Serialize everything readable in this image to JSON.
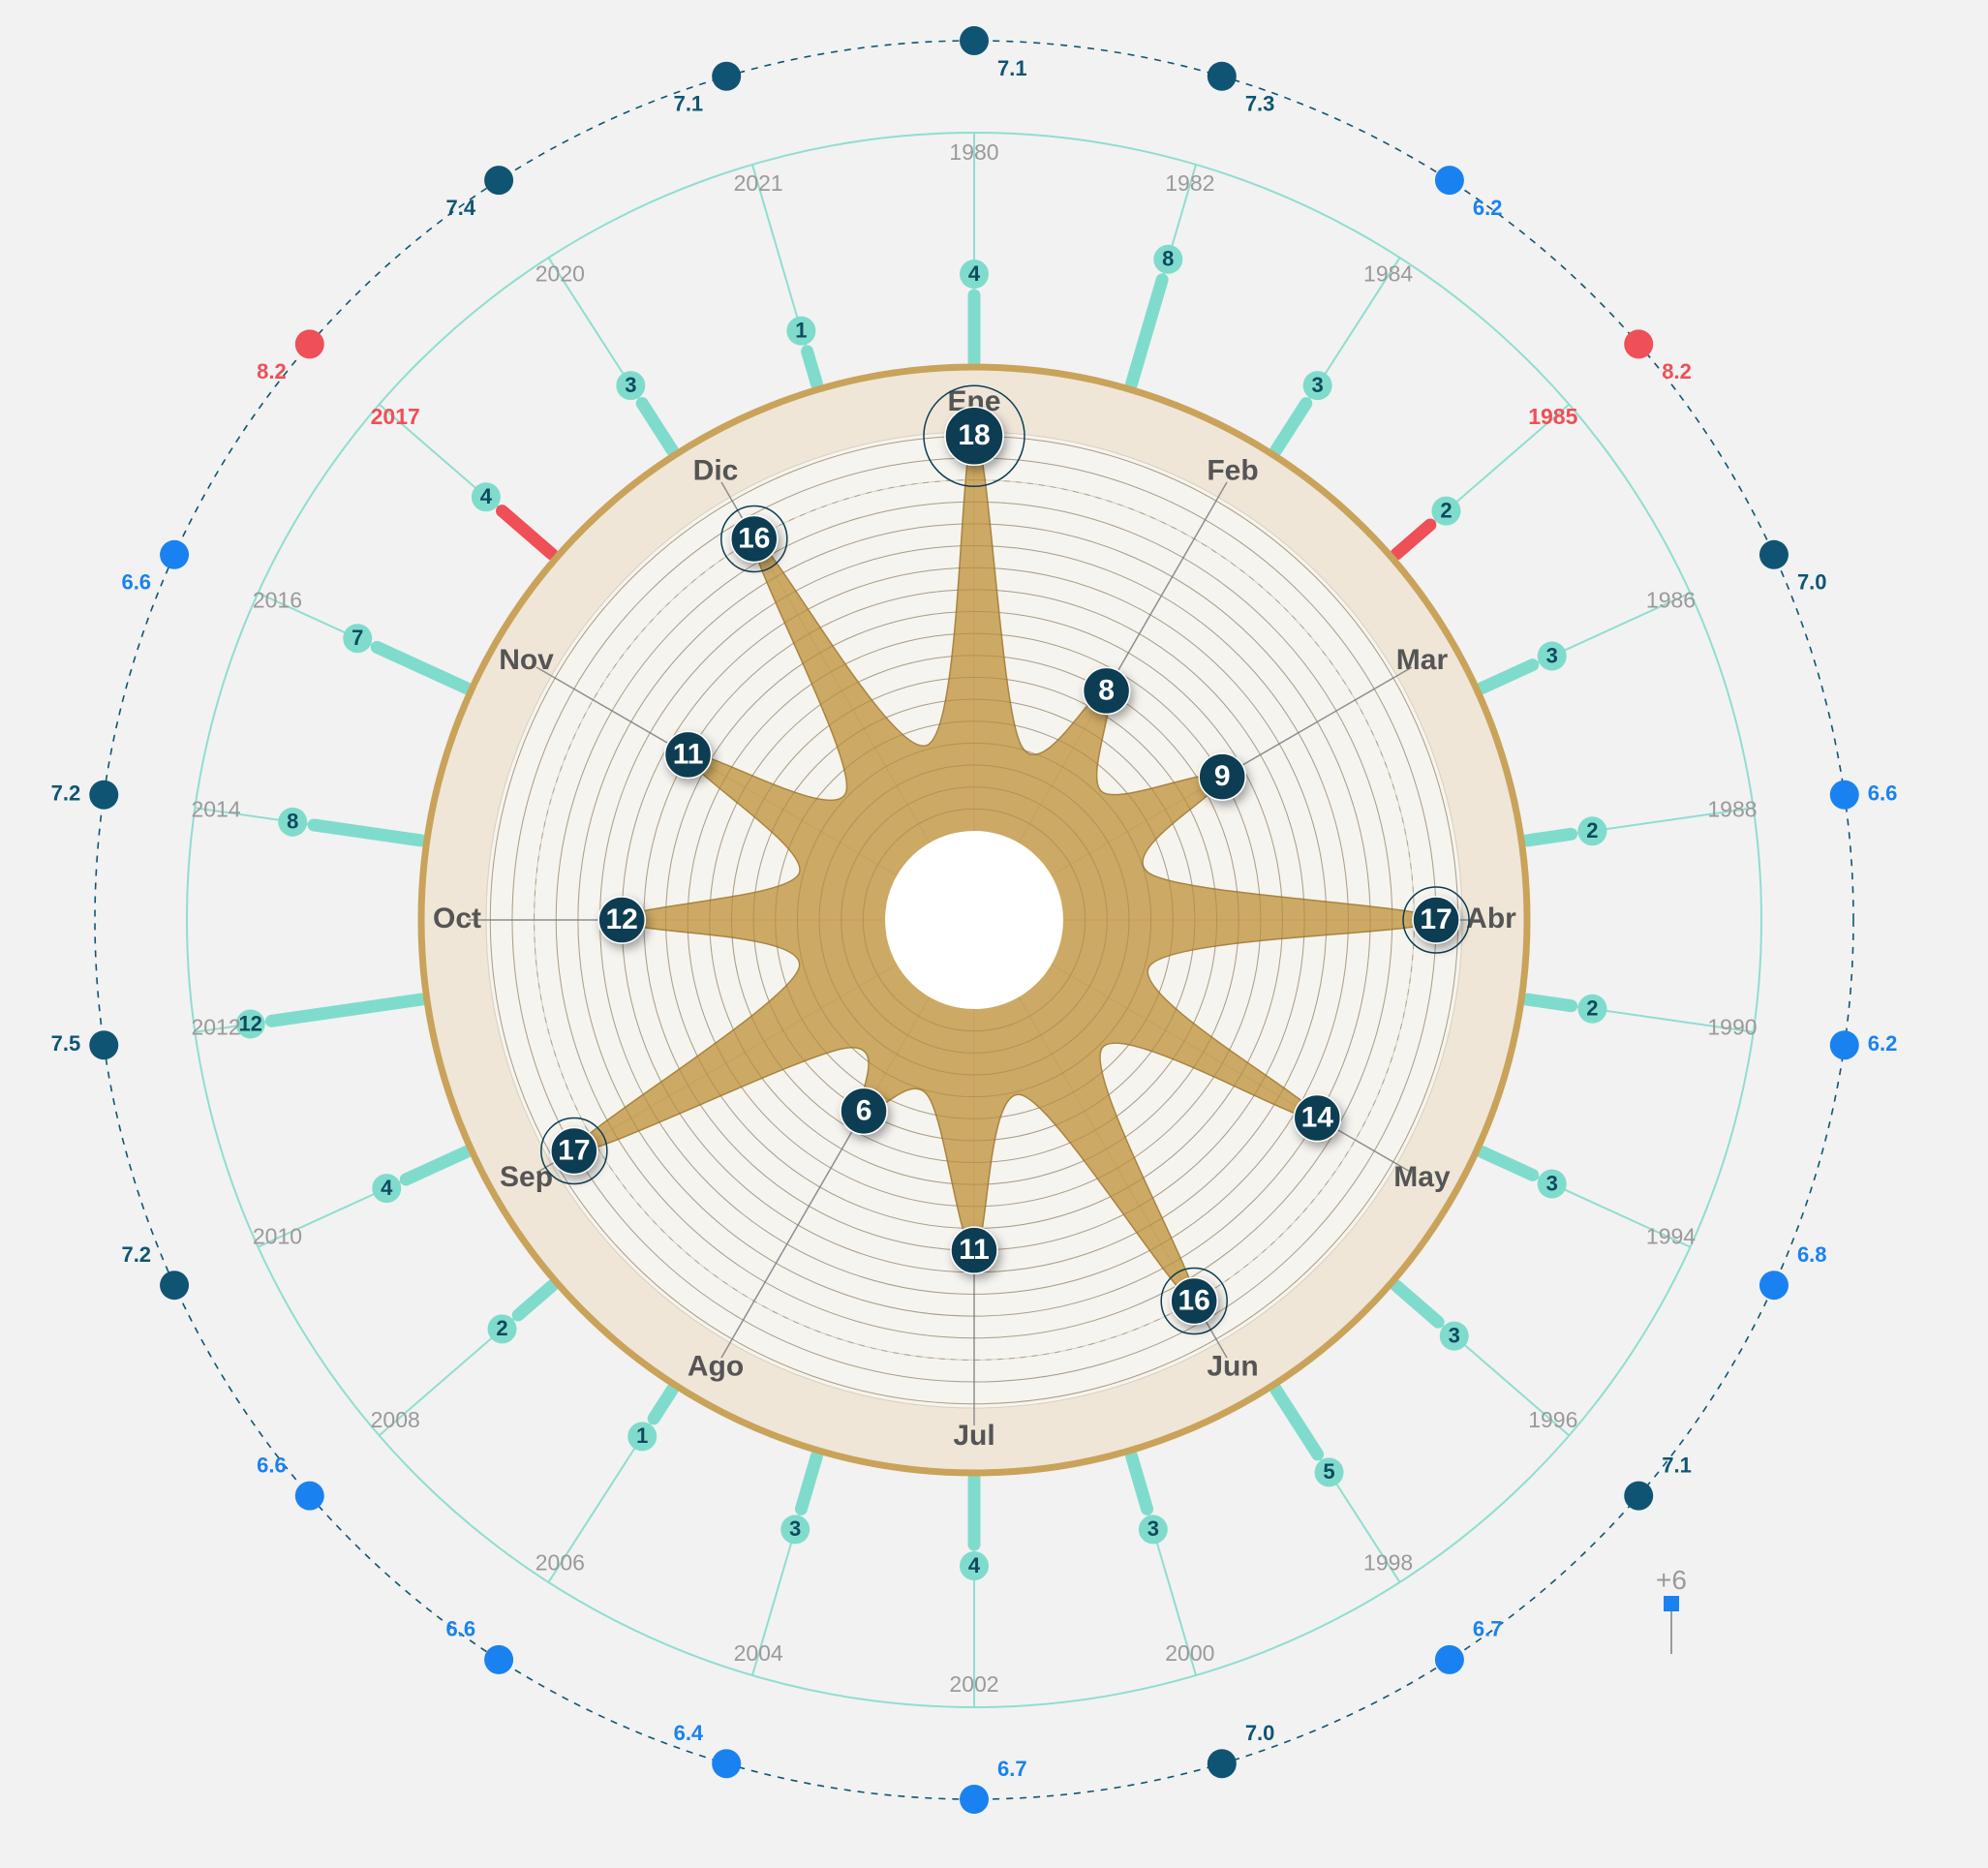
{
  "chart_data": {
    "type": "radial",
    "months": [
      {
        "label": "Ene",
        "value": 18
      },
      {
        "label": "Feb",
        "value": 8
      },
      {
        "label": "Mar",
        "value": 9
      },
      {
        "label": "Abr",
        "value": 17
      },
      {
        "label": "May",
        "value": 14
      },
      {
        "label": "Jun",
        "value": 16
      },
      {
        "label": "Jul",
        "value": 11
      },
      {
        "label": "Ago",
        "value": 6
      },
      {
        "label": "Sep",
        "value": 17
      },
      {
        "label": "Oct",
        "value": 12
      },
      {
        "label": "Nov",
        "value": 11
      },
      {
        "label": "Dic",
        "value": 16
      }
    ],
    "month_scale_max": 20,
    "years": [
      {
        "year": "1980",
        "count": 4
      },
      {
        "year": "1982",
        "count": 8
      },
      {
        "year": "1984",
        "count": 3
      },
      {
        "year": "1985",
        "count": 2,
        "highlight": true
      },
      {
        "year": "1986",
        "count": 3
      },
      {
        "year": "1988",
        "count": 2
      },
      {
        "year": "1990",
        "count": 2
      },
      {
        "year": "1994",
        "count": 3
      },
      {
        "year": "1996",
        "count": 3
      },
      {
        "year": "1998",
        "count": 5
      },
      {
        "year": "2000",
        "count": 3
      },
      {
        "year": "2002",
        "count": 4
      },
      {
        "year": "2004",
        "count": 3
      },
      {
        "year": "2006",
        "count": 1
      },
      {
        "year": "2008",
        "count": 2
      },
      {
        "year": "2010",
        "count": 4
      },
      {
        "year": "2012",
        "count": 12
      },
      {
        "year": "2014",
        "count": 8
      },
      {
        "year": "2016",
        "count": 7
      },
      {
        "year": "2017",
        "count": 4,
        "highlight": true
      },
      {
        "year": "2020",
        "count": 3
      },
      {
        "year": "2021",
        "count": 1
      }
    ],
    "magnitudes": [
      {
        "value": "7.1",
        "level": "dark"
      },
      {
        "value": "7.3",
        "level": "dark"
      },
      {
        "value": "6.2",
        "level": "light"
      },
      {
        "value": "8.2",
        "level": "red"
      },
      {
        "value": "7.0",
        "level": "dark"
      },
      {
        "value": "6.6",
        "level": "light"
      },
      {
        "value": "6.2",
        "level": "light"
      },
      {
        "value": "6.8",
        "level": "light"
      },
      {
        "value": "7.1",
        "level": "dark"
      },
      {
        "value": "6.7",
        "level": "light"
      },
      {
        "value": "7.0",
        "level": "dark"
      },
      {
        "value": "6.7",
        "level": "light"
      },
      {
        "value": "6.4",
        "level": "light"
      },
      {
        "value": "6.6",
        "level": "light"
      },
      {
        "value": "6.6",
        "level": "light"
      },
      {
        "value": "7.2",
        "level": "dark"
      },
      {
        "value": "7.5",
        "level": "dark"
      },
      {
        "value": "7.2",
        "level": "dark"
      },
      {
        "value": "6.6",
        "level": "light"
      },
      {
        "value": "8.2",
        "level": "red"
      },
      {
        "value": "7.4",
        "level": "dark"
      },
      {
        "value": "7.1",
        "level": "dark"
      }
    ],
    "extra_label": "+6",
    "colors": {
      "background": "#f2f2f2",
      "area": "#c9a45c",
      "ring": "#c9a35a",
      "band": "#efe6d8",
      "inner": "#f6f4ef",
      "teal": "#7fdccc",
      "teal_line": "#8fded0",
      "dark_node": "#0c3d52",
      "mag_dark": "#0f5573",
      "mag_light": "#1a82f0",
      "highlight": "#ef4f57"
    }
  }
}
